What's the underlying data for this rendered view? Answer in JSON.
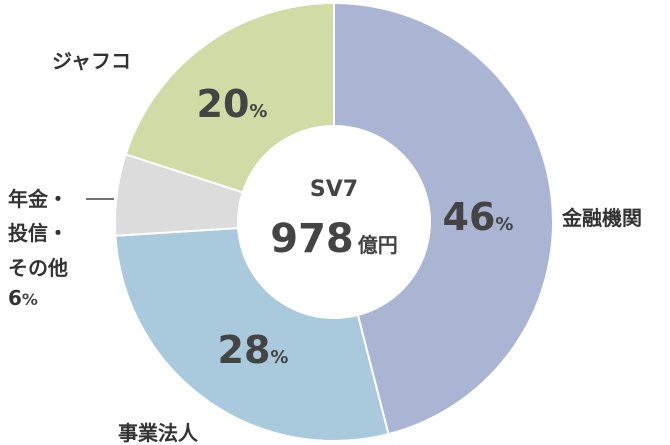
{
  "chart_data": {
    "type": "pie",
    "donut": true,
    "center": {
      "line1": "SV7",
      "value": "978",
      "unit": "億円"
    },
    "slices": [
      {
        "label": "金融機関",
        "value": 46,
        "color": "#a9b5d3",
        "pct_text": "46",
        "pct_unit": "%"
      },
      {
        "label": "事業法人",
        "value": 28,
        "color": "#a9c9dc",
        "pct_text": "28",
        "pct_unit": "%"
      },
      {
        "label_lines": [
          "年金・",
          "投信・",
          "その他"
        ],
        "value": 6,
        "color": "#dcdcdc",
        "pct_text": "6",
        "pct_unit": "%"
      },
      {
        "label": "ジャフコ",
        "value": 20,
        "color": "#d0dba6",
        "pct_text": "20",
        "pct_unit": "%"
      }
    ],
    "legend": "none"
  }
}
